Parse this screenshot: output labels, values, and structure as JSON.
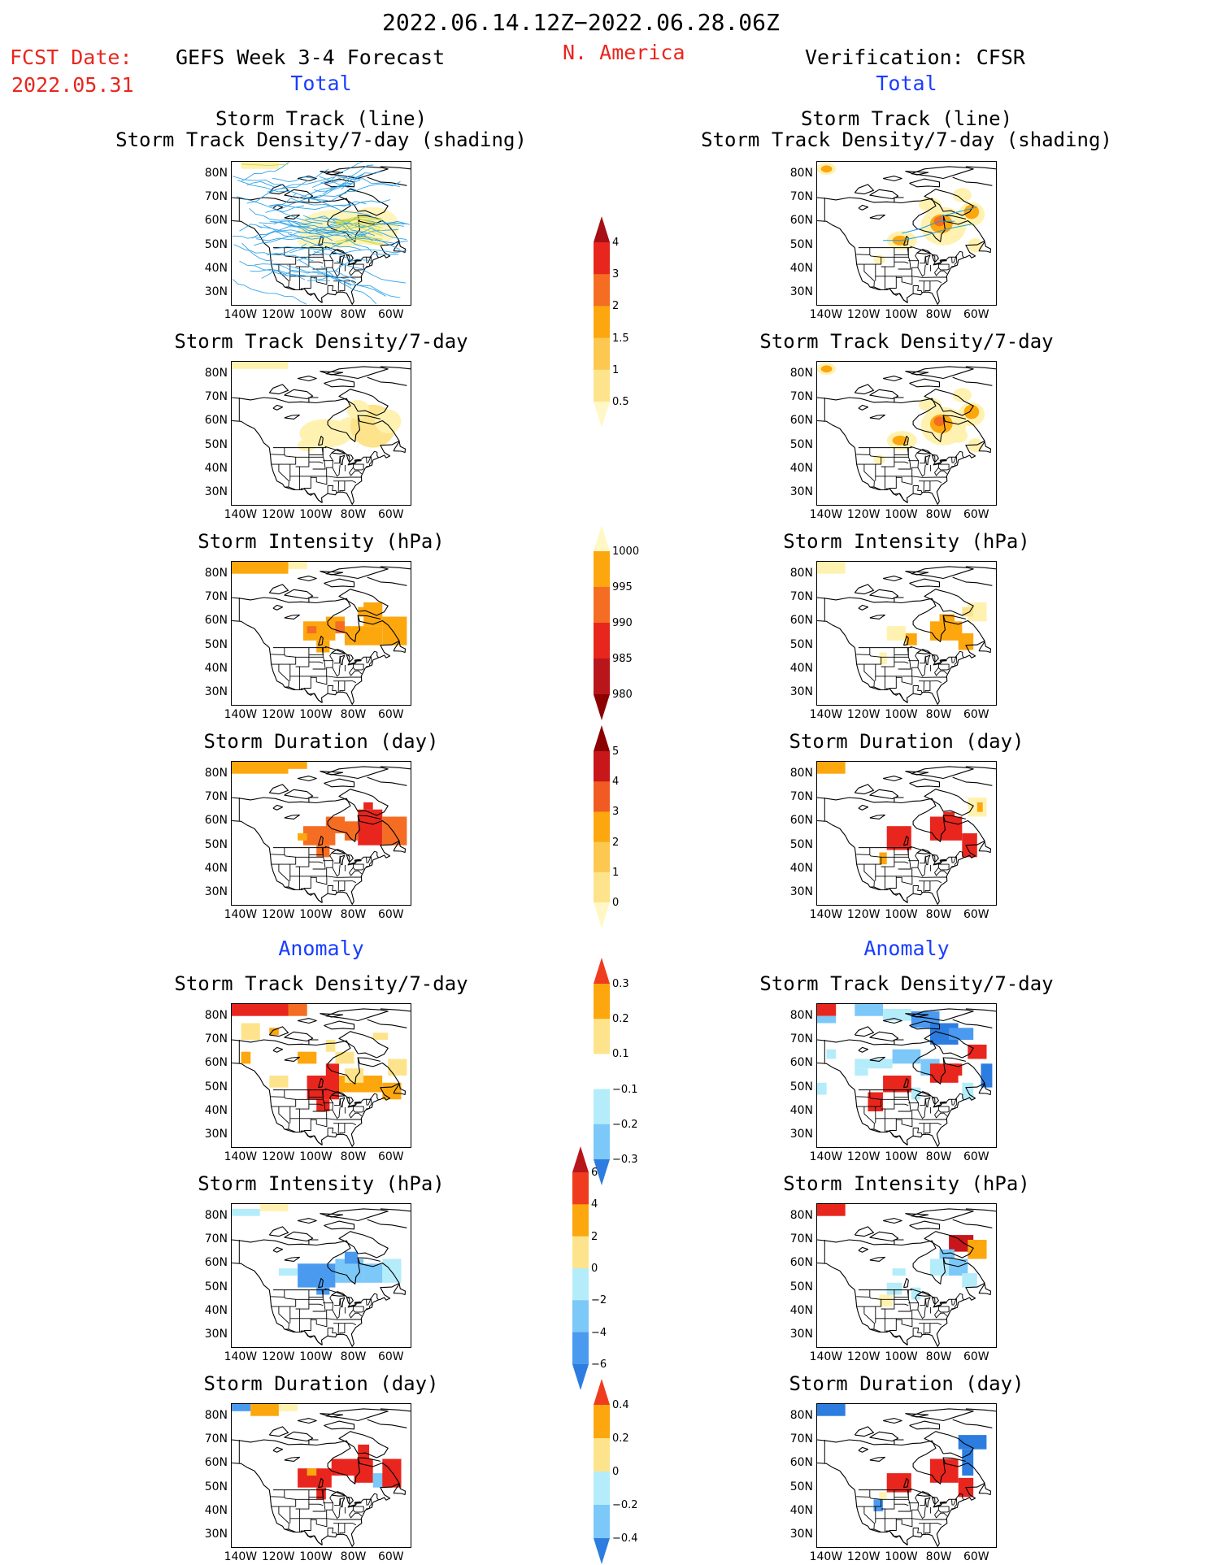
{
  "header": {
    "period": "2022.06.14.12Z−2022.06.28.06Z",
    "region": "N. America",
    "fcst_label": "FCST Date:",
    "fcst_date": "2022.05.31",
    "left_title": "GEFS Week 3-4 Forecast",
    "right_title": "Verification: CFSR",
    "total_left": "Total",
    "total_right": "Total",
    "anomaly_left": "Anomaly",
    "anomaly_right": "Anomaly"
  },
  "panel_titles": {
    "track_line": "Storm Track (line)",
    "track_shading": "Storm Track Density/7-day (shading)",
    "density": "Storm Track Density/7-day",
    "intensity": "Storm Intensity (hPa)",
    "duration": "Storm Duration (day)"
  },
  "axes": {
    "lat_ticks": [
      "80N",
      "70N",
      "60N",
      "50N",
      "40N",
      "30N"
    ],
    "lon_ticks": [
      "140W",
      "120W",
      "100W",
      "80W",
      "60W"
    ]
  },
  "colorbars": {
    "density_total": {
      "labels": [
        "4",
        "3",
        "2",
        "1.5",
        "1",
        "0.5"
      ],
      "colors": [
        "#a50f15",
        "#e8261e",
        "#f46d23",
        "#fca70e",
        "#fcc850",
        "#fde48c",
        "#fff8c6"
      ]
    },
    "intensity_total": {
      "labels": [
        "1000",
        "995",
        "990",
        "985",
        "980"
      ],
      "colors": [
        "#fff8c6",
        "#fca70e",
        "#f46d23",
        "#e8261e",
        "#b8161a",
        "#8b0000"
      ]
    },
    "duration_total": {
      "labels": [
        "5",
        "4",
        "3",
        "2",
        "1",
        "0"
      ],
      "colors": [
        "#8b0000",
        "#c8161a",
        "#f05a23",
        "#fca70e",
        "#fcc850",
        "#fde48c",
        "#fff8c6"
      ]
    },
    "density_anom": {
      "labels": [
        "0.3",
        "0.2",
        "0.1",
        "−0.1",
        "−0.2",
        "−0.3"
      ],
      "colors": [
        "#f03c1e",
        "#fca70e",
        "#fde48c",
        "#ffffff",
        "#b4ecfa",
        "#7cc8f8",
        "#2d7de0"
      ]
    },
    "intensity_anom": {
      "labels": [
        "6",
        "4",
        "2",
        "0",
        "−2",
        "−4",
        "−6"
      ],
      "colors": [
        "#b8161a",
        "#f03c1e",
        "#fca70e",
        "#fde48c",
        "#b4ecfa",
        "#7cc8f8",
        "#4a9af0",
        "#2d7de0"
      ]
    },
    "duration_anom": {
      "labels": [
        "0.4",
        "0.2",
        "0",
        "−0.2",
        "−0.4"
      ],
      "colors": [
        "#f03c1e",
        "#fca70e",
        "#fde48c",
        "#b4ecfa",
        "#7cc8f8",
        "#2d7de0"
      ]
    }
  },
  "colors": {
    "title_red": "#e8261e",
    "title_blue": "#1a3dff",
    "track_line": "#1e9be6"
  }
}
